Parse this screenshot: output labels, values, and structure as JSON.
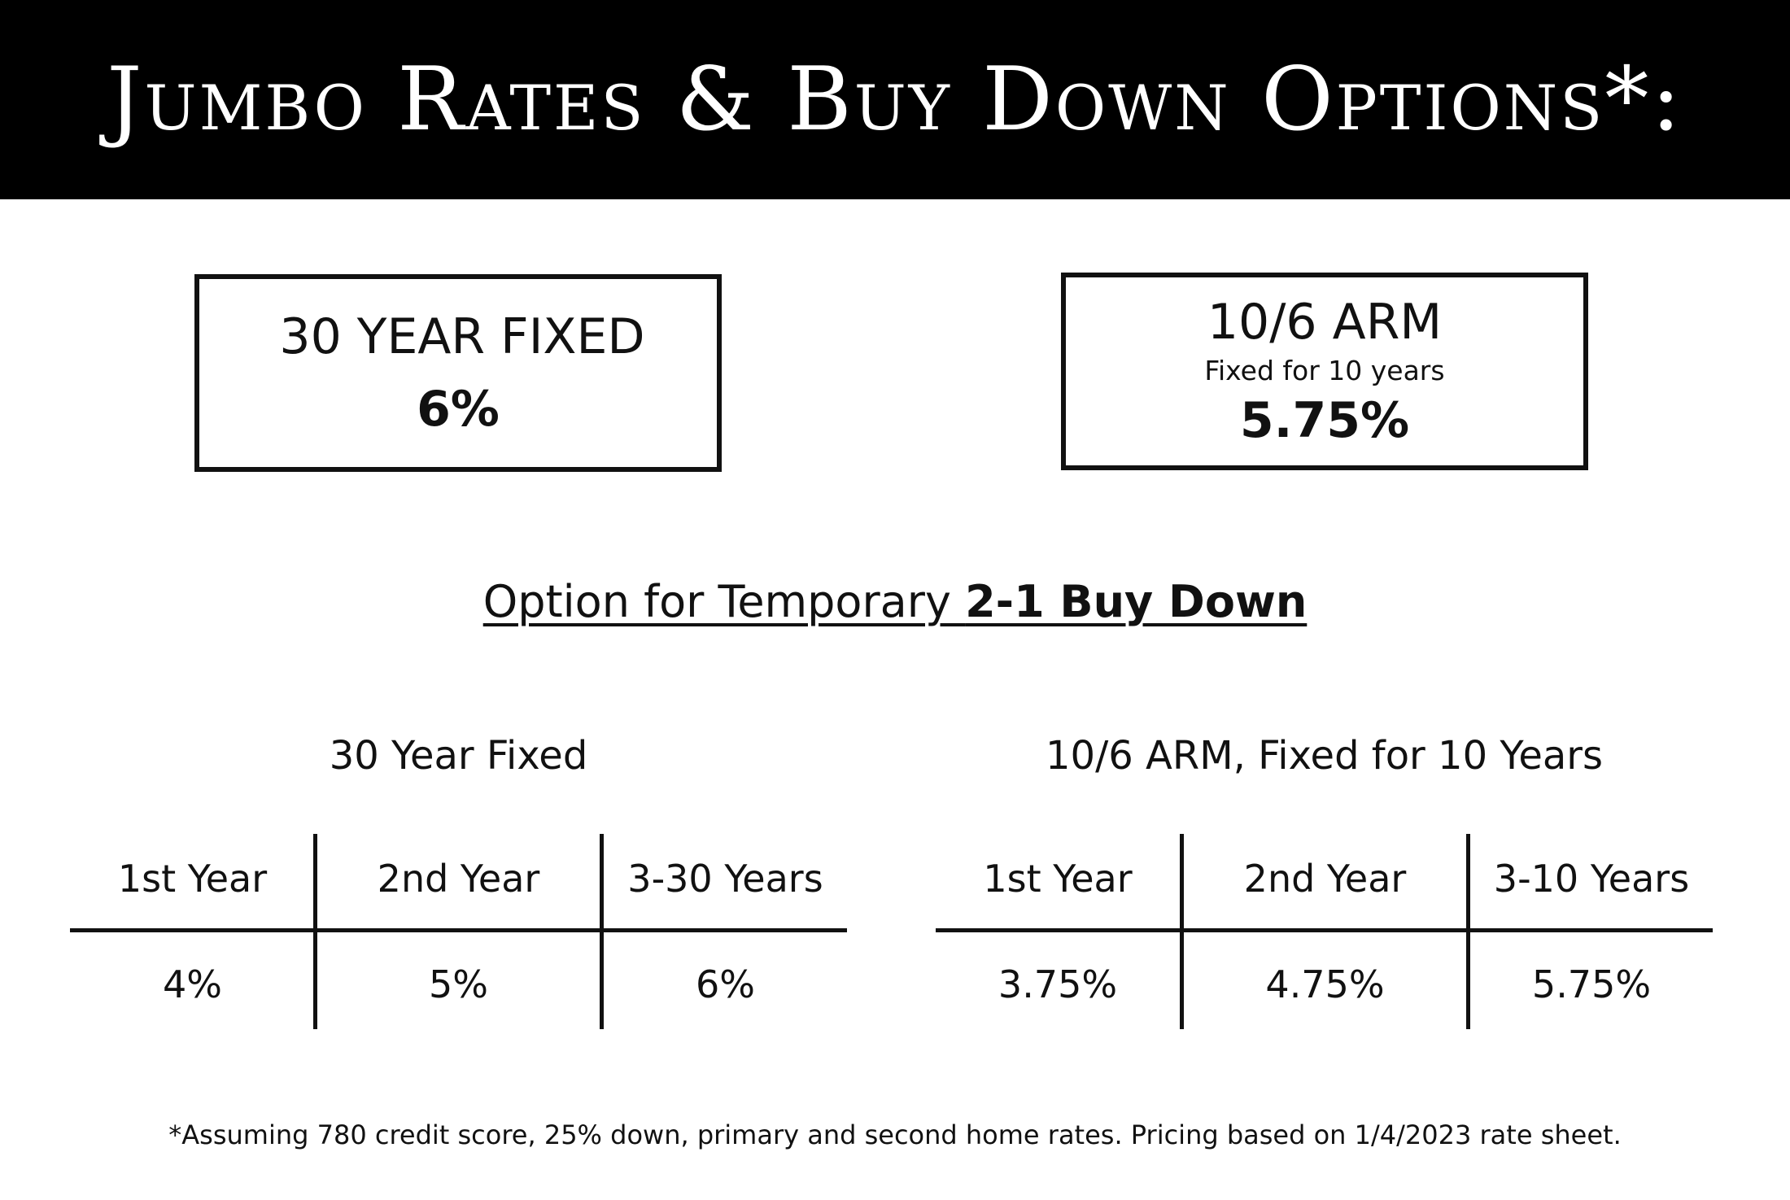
{
  "header": {
    "title": "Jumbo Rates & Buy Down Options*:"
  },
  "rate_boxes": {
    "fixed": {
      "title": "30 YEAR FIXED",
      "rate": "6%"
    },
    "arm": {
      "title": "10/6 ARM",
      "subtitle": "Fixed for 10 years",
      "rate": "5.75%"
    }
  },
  "buydown": {
    "heading_prefix": "Option for Temporary ",
    "heading_bold": "2-1 Buy Down"
  },
  "tables": {
    "fixed": {
      "title": "30 Year Fixed",
      "headers": [
        "1st Year",
        "2nd Year",
        "3-30 Years"
      ],
      "values": [
        "4%",
        "5%",
        "6%"
      ]
    },
    "arm": {
      "title": "10/6 ARM, Fixed for 10 Years",
      "headers": [
        "1st Year",
        "2nd Year",
        "3-10 Years"
      ],
      "values": [
        "3.75%",
        "4.75%",
        "5.75%"
      ]
    }
  },
  "footnote": "*Assuming 780 credit score, 25% down, primary and second home rates. Pricing based on 1/4/2023 rate sheet.",
  "colors": {
    "banner_background": "#000000",
    "banner_text": "#ffffff",
    "text": "#111111"
  }
}
